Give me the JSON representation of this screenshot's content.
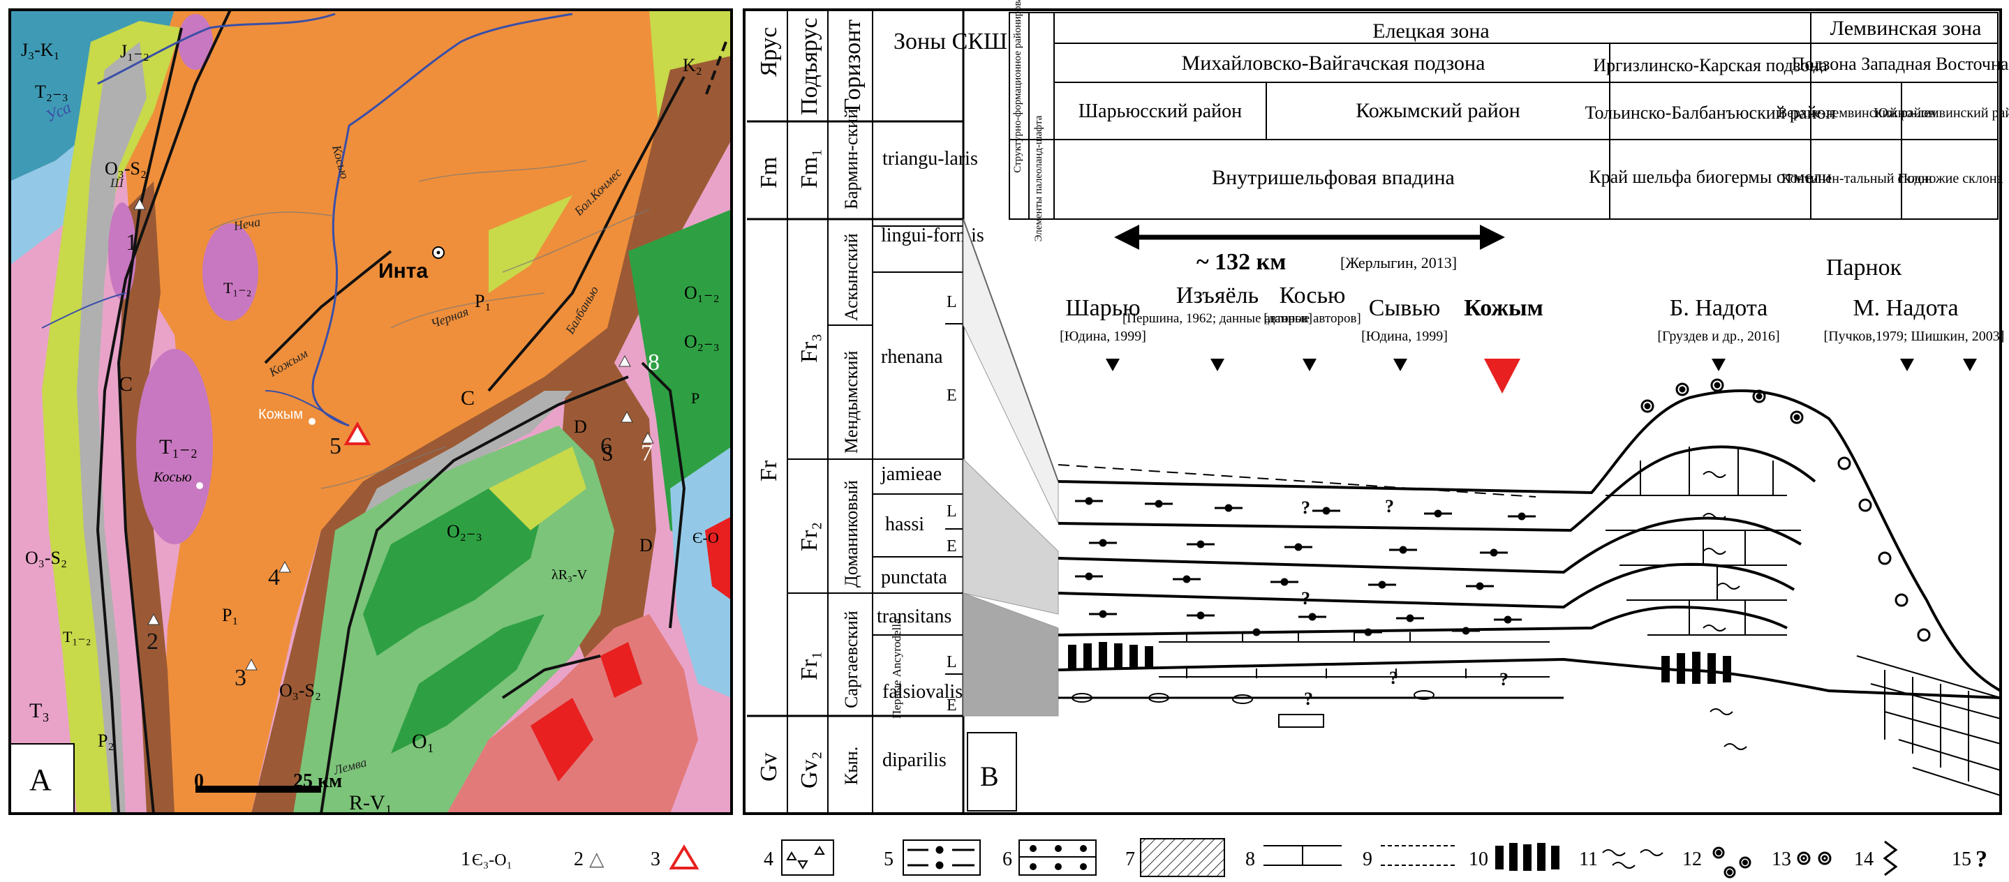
{
  "panel_a": {
    "label": "A",
    "city": "Инта",
    "places": [
      {
        "id": "kozhym",
        "text": "Кожым"
      },
      {
        "id": "kosyu",
        "text": "Косью"
      }
    ],
    "rivers": [
      {
        "id": "usa",
        "text": "Уса"
      },
      {
        "id": "kosyu-river",
        "text": "Косью"
      },
      {
        "id": "necha",
        "text": "Неча"
      },
      {
        "id": "kozhim-river",
        "text": "Кожым"
      },
      {
        "id": "chernaya",
        "text": "Черная"
      },
      {
        "id": "balbanyu",
        "text": "Балбанью"
      },
      {
        "id": "bol-koches",
        "text": "Бол.Кочмес"
      },
      {
        "id": "lemva",
        "text": "Лемва"
      },
      {
        "id": "shar",
        "text": "Ш"
      }
    ],
    "geology_labels": [
      {
        "id": "j3k1",
        "text": "J₃-K₁"
      },
      {
        "id": "j12",
        "text": "J₁₋₂"
      },
      {
        "id": "t23",
        "text": "T₂₋₃"
      },
      {
        "id": "o3s2-top",
        "text": "O₃-S₂"
      },
      {
        "id": "t12-a",
        "text": "T₁₋₂"
      },
      {
        "id": "t12-big",
        "text": "T₁₋₂"
      },
      {
        "id": "c-left",
        "text": "C"
      },
      {
        "id": "c-mid",
        "text": "C"
      },
      {
        "id": "p1-top",
        "text": "P₁"
      },
      {
        "id": "p1-mid",
        "text": "P₁"
      },
      {
        "id": "o3s2-left",
        "text": "O₃-S₂"
      },
      {
        "id": "t12-left",
        "text": "T₁₋₂"
      },
      {
        "id": "t3",
        "text": "T₃"
      },
      {
        "id": "p2",
        "text": "P₂"
      },
      {
        "id": "o23",
        "text": "O₂₋₃"
      },
      {
        "id": "o3s2-bottom",
        "text": "O₃-S₂"
      },
      {
        "id": "o1",
        "text": "O₁"
      },
      {
        "id": "rv1",
        "text": "R-V₁"
      },
      {
        "id": "rv",
        "text": "λR₃-V"
      },
      {
        "id": "k2",
        "text": "K₂"
      },
      {
        "id": "o12",
        "text": "O₁₋₂"
      },
      {
        "id": "o23-right",
        "text": "O₂₋₃"
      },
      {
        "id": "s",
        "text": "S"
      },
      {
        "id": "d-left",
        "text": "D"
      },
      {
        "id": "d-right",
        "text": "D"
      },
      {
        "id": "p-right",
        "text": "P"
      },
      {
        "id": "e-o",
        "text": "Є-O"
      }
    ],
    "sites": [
      "1",
      "2",
      "3",
      "4",
      "5",
      "6",
      "7",
      "8"
    ],
    "scale": {
      "zero": "0",
      "distance": "25 км"
    }
  },
  "panel_b": {
    "label": "B",
    "column_headers": [
      "Ярус",
      "Подъярус",
      "Горизонт",
      "Зоны СКШ"
    ],
    "stages": [
      "Fm",
      "Fr",
      "Gv"
    ],
    "substages": [
      "Fm₁",
      "Fr₃",
      "Fr₂",
      "Fr₁",
      "Gv₂"
    ],
    "horizons": [
      "Бармин-ский",
      "Аскынский",
      "Мендымский",
      "Доманиковый",
      "Саргаевский",
      "Кын."
    ],
    "zones": [
      "triangu-laris",
      "lingui-formis",
      "rhenana",
      "jamieae",
      "hassi",
      "punctata",
      "transitans",
      "falsiovalis",
      "diparilis"
    ],
    "zone_marks": [
      "L",
      "E",
      "L",
      "E",
      "L",
      "E"
    ],
    "first_ancyrodella": "Первые Ancyrodella",
    "header_table": {
      "side_labels": [
        "Структурно-формационное районирование",
        "Элементы палеоланд-шафта"
      ],
      "zones": [
        "Елецкая зона",
        "Лемвинская зона"
      ],
      "subzones": [
        "Михайловско-Вайгачская подзона",
        "Иргизлинско-Карская подзона",
        "Подзона Западная Восточная"
      ],
      "districts": [
        "Шарьюсский район",
        "Кожымский район",
        "Тольинско-Балбанъюский район",
        "Верхне-лемвинский район",
        "Южно-лемвинский район"
      ],
      "landscape": [
        "Внутришельфовая впадина",
        "Край шельфа биогермы отмели",
        "Континен-тальный склон",
        "Подножие склона"
      ]
    },
    "distance": {
      "value": "~ 132 км",
      "source": "[Жерлыгин, 2013]"
    },
    "sections": [
      {
        "name": "Шарью",
        "ref": "[Юдина, 1999]"
      },
      {
        "name": "Изъяёль",
        "ref": "[Першина, 1962; данные авторов]"
      },
      {
        "name": "Косью",
        "ref": "[данные авторов]"
      },
      {
        "name": "Сывью",
        "ref": "[Юдина, 1999]"
      },
      {
        "name": "Кожым",
        "ref": ""
      },
      {
        "name": "Б. Надота",
        "ref": "[Груздев и др., 2016]"
      },
      {
        "name": "Парнок",
        "ref": ""
      },
      {
        "name": "М. Надота",
        "ref": "[Пучков,1979; Шишкин, 2003]"
      }
    ],
    "question_mark": "?"
  },
  "legend": {
    "items": [
      {
        "num": "1",
        "text": "Є₃-O₁"
      },
      {
        "num": "2",
        "text": "△"
      },
      {
        "num": "3",
        "text": ""
      },
      {
        "num": "4",
        "text": ""
      },
      {
        "num": "5",
        "text": ""
      },
      {
        "num": "6",
        "text": ""
      },
      {
        "num": "7",
        "text": ""
      },
      {
        "num": "8",
        "text": ""
      },
      {
        "num": "9",
        "text": ""
      },
      {
        "num": "10",
        "text": ""
      },
      {
        "num": "11",
        "text": ""
      },
      {
        "num": "12",
        "text": ""
      },
      {
        "num": "13",
        "text": ""
      },
      {
        "num": "14",
        "text": ""
      },
      {
        "num": "15",
        "text": "?"
      }
    ]
  },
  "colors": {
    "orange": "#ef8f3b",
    "brown": "#9b5a35",
    "grey": "#b0b0b0",
    "yellowgreen": "#c8d94a",
    "green": "#2ea043",
    "lightgreen": "#7cc47a",
    "pink": "#e9a3c9",
    "magenta": "#c878c0",
    "teal": "#3f9bb5",
    "lightblue": "#93c9e6",
    "red": "#e82020",
    "salmon": "#e27a7a",
    "river": "#3a4fa8"
  }
}
